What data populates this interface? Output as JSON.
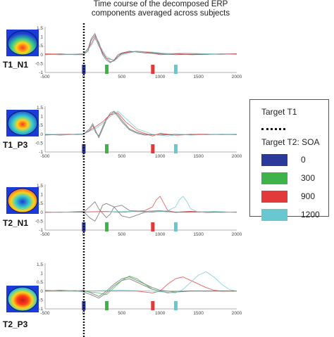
{
  "title_lines": [
    "Time course of the decomposed ERP",
    "components averaged across subjects"
  ],
  "legend": {
    "target_t1_label": "Target T1",
    "target_t2_label": "Target T2: SOA",
    "entries": [
      {
        "value": "0",
        "color": "#2b3a99"
      },
      {
        "value": "300",
        "color": "#3db34a"
      },
      {
        "value": "900",
        "color": "#e23a3a"
      },
      {
        "value": "1200",
        "color": "#69c8cf"
      }
    ]
  },
  "colors": {
    "t1_marker": "#111111",
    "grey_trace": "#777777"
  },
  "chart_data": [
    {
      "type": "line",
      "component": "T1_N1",
      "head_map": "scalp-topography",
      "x_ticks": [
        -500,
        0,
        500,
        1000,
        1500,
        2000
      ],
      "y_ticks": [
        -1,
        -0.5,
        0,
        0.5,
        1,
        1.5
      ],
      "xlim": [
        -500,
        2000
      ],
      "ylim": [
        -1,
        1.5
      ],
      "soa_markers": [
        0,
        300,
        900,
        1200
      ],
      "series": [
        {
          "color": "#777777",
          "x": [
            -500,
            -300,
            -100,
            0,
            60,
            100,
            150,
            200,
            250,
            300,
            350,
            400,
            450,
            500,
            600,
            700,
            800,
            1000,
            1200,
            1400,
            1600,
            1800,
            2000
          ],
          "y": [
            0.02,
            0.0,
            0.03,
            0.05,
            0.3,
            0.9,
            1.2,
            0.6,
            0.0,
            -0.3,
            -0.45,
            -0.3,
            0.0,
            0.1,
            0.2,
            0.15,
            0.1,
            0.05,
            0.0,
            0.03,
            0.05,
            0.02,
            0.05
          ]
        },
        {
          "color": "#777777",
          "x": [
            -500,
            -300,
            -100,
            0,
            60,
            100,
            150,
            200,
            250,
            300,
            350,
            400,
            450,
            500,
            600,
            700,
            800,
            1000,
            1200,
            1400,
            1600,
            1800,
            2000
          ],
          "y": [
            0.0,
            0.05,
            0.0,
            0.02,
            0.2,
            0.8,
            1.1,
            0.7,
            0.1,
            -0.2,
            -0.4,
            -0.35,
            -0.1,
            0.05,
            0.15,
            0.2,
            0.15,
            0.08,
            0.05,
            0.0,
            0.02,
            0.05,
            0.03
          ]
        },
        {
          "color": "#e23a3a",
          "x": [
            -500,
            -200,
            0,
            100,
            150,
            200,
            300,
            400,
            500,
            700,
            900,
            1000,
            1200,
            1500,
            2000
          ],
          "y": [
            0.05,
            0.02,
            0.0,
            0.6,
            1.0,
            0.5,
            -0.2,
            -0.3,
            0.1,
            0.2,
            0.1,
            0.0,
            0.05,
            0.02,
            0.05
          ]
        },
        {
          "color": "#69c8cf",
          "x": [
            -500,
            -200,
            0,
            100,
            150,
            200,
            300,
            400,
            500,
            700,
            900,
            1100,
            1300,
            1600,
            2000
          ],
          "y": [
            0.0,
            0.03,
            0.02,
            0.5,
            0.9,
            0.6,
            -0.1,
            -0.35,
            0.0,
            0.2,
            0.15,
            0.05,
            0.1,
            0.05,
            0.02
          ]
        }
      ]
    },
    {
      "type": "line",
      "component": "T1_P3",
      "head_map": "scalp-topography",
      "x_ticks": [
        -500,
        0,
        500,
        1000,
        1500,
        2000
      ],
      "y_ticks": [
        -1,
        -0.5,
        0,
        0.5,
        1,
        1.5
      ],
      "xlim": [
        -500,
        2000
      ],
      "ylim": [
        -1,
        1.5
      ],
      "soa_markers": [
        0,
        300,
        900,
        1200
      ],
      "series": [
        {
          "color": "#777777",
          "x": [
            -500,
            -300,
            -100,
            0,
            80,
            120,
            160,
            200,
            250,
            300,
            350,
            400,
            450,
            500,
            600,
            700,
            800,
            1000,
            1200,
            1400,
            1600,
            1800,
            2000
          ],
          "y": [
            -0.05,
            0.0,
            -0.02,
            0.0,
            0.3,
            0.6,
            0.2,
            -0.2,
            0.3,
            0.8,
            1.2,
            1.3,
            1.1,
            0.8,
            0.3,
            0.1,
            0.0,
            -0.05,
            0.0,
            -0.03,
            0.0,
            -0.02,
            0.0
          ]
        },
        {
          "color": "#777777",
          "x": [
            -500,
            -300,
            -100,
            0,
            80,
            120,
            160,
            200,
            250,
            300,
            350,
            400,
            450,
            500,
            600,
            700,
            800,
            1000,
            1200,
            1400,
            1600,
            1800,
            2000
          ],
          "y": [
            0.0,
            -0.05,
            0.0,
            0.02,
            0.2,
            0.5,
            0.1,
            -0.1,
            0.4,
            0.9,
            1.1,
            1.25,
            1.0,
            0.7,
            0.25,
            0.05,
            -0.05,
            0.0,
            -0.05,
            0.0,
            -0.03,
            0.0,
            -0.02
          ]
        },
        {
          "color": "#e23a3a",
          "x": [
            -500,
            -200,
            0,
            150,
            250,
            350,
            450,
            550,
            700,
            900,
            1000,
            1200,
            1500,
            2000
          ],
          "y": [
            -0.03,
            0.0,
            0.0,
            0.4,
            0.7,
            1.1,
            1.2,
            0.7,
            0.2,
            -0.1,
            0.05,
            -0.05,
            0.0,
            -0.02
          ]
        },
        {
          "color": "#69c8cf",
          "x": [
            -500,
            -200,
            0,
            150,
            250,
            350,
            450,
            550,
            700,
            900,
            1100,
            1250,
            1400,
            1700,
            2000
          ],
          "y": [
            0.0,
            -0.02,
            0.02,
            0.3,
            0.6,
            1.0,
            1.3,
            0.9,
            0.3,
            0.0,
            -0.1,
            0.0,
            -0.05,
            0.0,
            0.0
          ]
        }
      ]
    },
    {
      "type": "line",
      "component": "T2_N1",
      "head_map": "scalp-topography",
      "x_ticks": [
        -500,
        0,
        500,
        1000,
        1500,
        2000
      ],
      "y_ticks": [
        -1,
        -0.5,
        0,
        0.5,
        1,
        1.5
      ],
      "xlim": [
        -500,
        2000
      ],
      "ylim": [
        -1,
        1.5
      ],
      "soa_markers": [
        0,
        300,
        900,
        1200
      ],
      "series": [
        {
          "color": "#777777",
          "x": [
            -500,
            -300,
            0,
            80,
            150,
            200,
            300,
            350,
            400,
            500,
            600,
            800,
            1000,
            1200,
            1400,
            1600,
            1800,
            2000
          ],
          "y": [
            0.0,
            0.02,
            0.0,
            0.3,
            0.6,
            0.2,
            -0.3,
            -0.1,
            0.3,
            0.4,
            0.1,
            0.05,
            0.1,
            0.0,
            0.05,
            0.0,
            0.02,
            0.0
          ]
        },
        {
          "color": "#777777",
          "x": [
            -500,
            -300,
            0,
            80,
            150,
            200,
            250,
            300,
            400,
            500,
            600,
            800,
            1000,
            1200,
            1400,
            1600,
            1800,
            2000
          ],
          "y": [
            0.02,
            0.0,
            0.05,
            -0.3,
            -0.5,
            -0.1,
            0.4,
            0.5,
            0.3,
            -0.2,
            -0.3,
            0.0,
            0.05,
            0.02,
            0.0,
            0.03,
            0.0,
            0.02
          ]
        },
        {
          "color": "#e23a3a",
          "x": [
            -500,
            0,
            300,
            500,
            800,
            900,
            950,
            1000,
            1050,
            1100,
            1200,
            1400,
            1600,
            2000
          ],
          "y": [
            0.0,
            0.02,
            0.05,
            0.0,
            0.1,
            0.3,
            0.7,
            0.9,
            0.5,
            0.1,
            0.0,
            0.05,
            0.0,
            0.02
          ]
        },
        {
          "color": "#69c8cf",
          "x": [
            -500,
            0,
            300,
            600,
            900,
            1100,
            1200,
            1250,
            1300,
            1350,
            1400,
            1500,
            1700,
            2000
          ],
          "y": [
            0.02,
            0.0,
            0.03,
            0.05,
            0.0,
            0.1,
            0.3,
            0.7,
            0.9,
            0.6,
            0.2,
            0.0,
            0.05,
            0.0
          ]
        }
      ]
    },
    {
      "type": "line",
      "component": "T2_P3",
      "head_map": "scalp-topography",
      "x_ticks": [
        -500,
        0,
        500,
        1000,
        1500,
        2000
      ],
      "y_ticks": [
        -1,
        -0.5,
        0,
        0.5,
        1,
        1.5
      ],
      "xlim": [
        -500,
        2000
      ],
      "ylim": [
        -1,
        1.5
      ],
      "soa_markers": [
        0,
        300,
        900,
        1200
      ],
      "series": [
        {
          "color": "#777777",
          "x": [
            -500,
            -300,
            -100,
            0,
            100,
            200,
            300,
            400,
            500,
            600,
            700,
            800,
            900,
            1000,
            1100,
            1200,
            1400,
            1600,
            1800,
            2000
          ],
          "y": [
            0.0,
            0.05,
            0.0,
            0.05,
            -0.1,
            -0.3,
            0.0,
            0.4,
            0.7,
            0.8,
            0.6,
            0.4,
            0.2,
            0.05,
            0.0,
            -0.05,
            0.0,
            0.0,
            0.02,
            0.0
          ]
        },
        {
          "color": "#777777",
          "x": [
            -500,
            -300,
            -100,
            0,
            100,
            200,
            300,
            400,
            500,
            600,
            700,
            800,
            900,
            1000,
            1100,
            1200,
            1400,
            1600,
            1800,
            2000
          ],
          "y": [
            0.05,
            0.0,
            0.03,
            -0.05,
            -0.2,
            -0.4,
            -0.1,
            0.3,
            0.6,
            0.7,
            0.5,
            0.3,
            0.1,
            0.0,
            -0.1,
            -0.05,
            0.02,
            0.0,
            0.0,
            0.02
          ]
        },
        {
          "color": "#3db34a",
          "x": [
            -500,
            0,
            200,
            300,
            400,
            500,
            600,
            700,
            800,
            900,
            1000,
            1200,
            1500,
            2000
          ],
          "y": [
            0.0,
            0.0,
            -0.1,
            -0.2,
            0.2,
            0.6,
            0.85,
            0.7,
            0.4,
            0.1,
            0.0,
            0.0,
            0.02,
            0.0
          ]
        },
        {
          "color": "#e23a3a",
          "x": [
            -500,
            0,
            400,
            700,
            900,
            1000,
            1100,
            1200,
            1300,
            1400,
            1500,
            1600,
            1700,
            1800,
            2000
          ],
          "y": [
            0.0,
            0.02,
            0.0,
            0.0,
            -0.1,
            0.0,
            0.4,
            0.7,
            0.8,
            0.6,
            0.4,
            0.2,
            0.05,
            0.0,
            0.0
          ]
        },
        {
          "color": "#69c8cf",
          "x": [
            -500,
            0,
            500,
            900,
            1200,
            1300,
            1400,
            1500,
            1600,
            1700,
            1800,
            1900,
            2000
          ],
          "y": [
            0.02,
            0.0,
            0.05,
            0.0,
            -0.1,
            0.1,
            0.5,
            0.9,
            1.1,
            0.8,
            0.4,
            0.1,
            0.0
          ]
        }
      ]
    }
  ]
}
